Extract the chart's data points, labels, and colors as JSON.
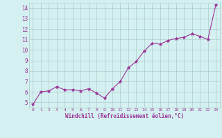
{
  "x": [
    0,
    1,
    2,
    3,
    4,
    5,
    6,
    7,
    8,
    9,
    10,
    11,
    12,
    13,
    14,
    15,
    16,
    17,
    18,
    19,
    20,
    21,
    22,
    23
  ],
  "y": [
    4.8,
    6.0,
    6.1,
    6.5,
    6.2,
    6.2,
    6.1,
    6.3,
    5.9,
    5.4,
    6.3,
    7.0,
    8.3,
    8.9,
    9.9,
    10.65,
    10.55,
    10.9,
    11.1,
    11.2,
    11.55,
    11.3,
    11.0,
    14.3
  ],
  "line_color": "#993399",
  "marker": "*",
  "bg_color": "#d5f0f0",
  "grid_color": "#aacccc",
  "xlabel": "Windchill (Refroidissement éolien,°C)",
  "xlabel_color": "#993399",
  "tick_color": "#993399",
  "xlim": [
    -0.5,
    23.5
  ],
  "ylim": [
    4.5,
    14.5
  ],
  "yticks": [
    5,
    6,
    7,
    8,
    9,
    10,
    11,
    12,
    13,
    14
  ],
  "xticks": [
    0,
    1,
    2,
    3,
    4,
    5,
    6,
    7,
    8,
    9,
    10,
    11,
    12,
    13,
    14,
    15,
    16,
    17,
    18,
    19,
    20,
    21,
    22,
    23
  ]
}
